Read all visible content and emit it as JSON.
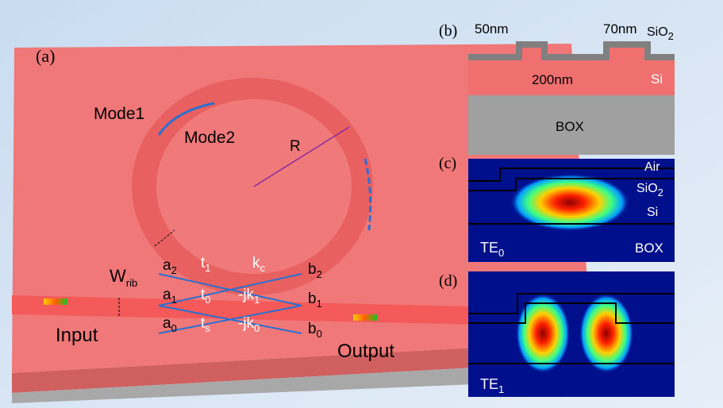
{
  "panel_a": {
    "label": "(a)",
    "mode1": "Mode1",
    "mode2": "Mode2",
    "radius": "R",
    "width": {
      "base": "W",
      "sub": "rib"
    },
    "coupling": [
      {
        "base": "a",
        "sub": "2"
      },
      {
        "base": "t",
        "sub": "1"
      },
      {
        "base": "k",
        "sub": "c"
      },
      {
        "base": "b",
        "sub": "2"
      },
      {
        "base": "a",
        "sub": "1"
      },
      {
        "base": "t",
        "sub": "0"
      },
      {
        "base": "-jk",
        "sub": "1"
      },
      {
        "base": "b",
        "sub": "1"
      },
      {
        "base": "a",
        "sub": "0"
      },
      {
        "base": "t",
        "sub": "s"
      },
      {
        "base": "-jk",
        "sub": "0"
      },
      {
        "base": "b",
        "sub": "0"
      }
    ],
    "input": "Input",
    "output": "Output"
  },
  "panel_b": {
    "label": "(b)",
    "gap": "50nm",
    "etch": "70nm",
    "cladding": {
      "base": "SiO",
      "sub": "2"
    },
    "height": "200nm",
    "core": "Si",
    "substrate": "BOX"
  },
  "panel_c": {
    "label": "(c)",
    "air": "Air",
    "cladding": {
      "base": "SiO",
      "sub": "2"
    },
    "core": "Si",
    "mode": {
      "base": "TE",
      "sub": "0"
    },
    "substrate": "BOX"
  },
  "panel_d": {
    "label": "(d)",
    "mode": {
      "base": "TE",
      "sub": "1"
    }
  }
}
